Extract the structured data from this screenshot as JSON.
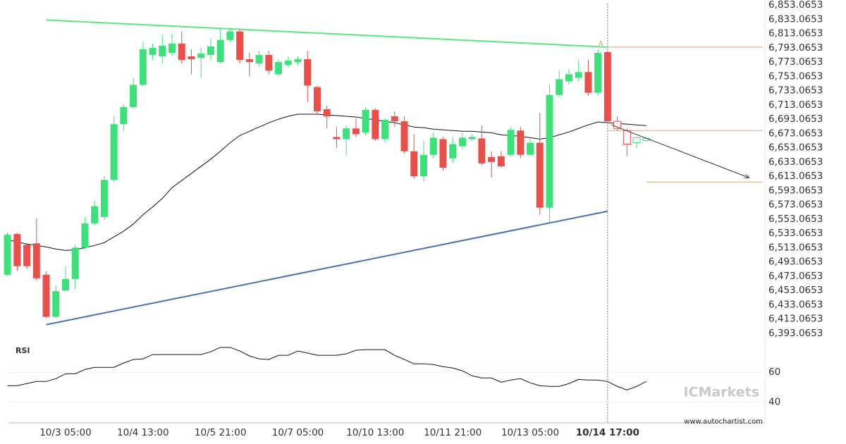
{
  "chart_data": [
    {
      "type": "candlestick",
      "categories": [
        null,
        null,
        null,
        null,
        null,
        null,
        "10/3 05:00",
        null,
        null,
        null,
        null,
        null,
        null,
        null,
        "10/4 13:00",
        null,
        null,
        null,
        null,
        null,
        null,
        null,
        "10/5 21:00",
        null,
        null,
        null,
        null,
        null,
        null,
        null,
        "10/7 05:00",
        null,
        null,
        null,
        null,
        null,
        null,
        null,
        "10/10 13:00",
        null,
        null,
        null,
        null,
        null,
        null,
        null,
        "10/11 21:00",
        null,
        null,
        null,
        null,
        null,
        null,
        null,
        "10/13 05:00",
        null,
        null,
        null,
        null,
        null,
        null,
        null,
        "10/14 17:00",
        null,
        null,
        null,
        null
      ],
      "ohlc": [
        [
          6475,
          6534,
          6473,
          6531
        ],
        [
          6532,
          6534,
          6480,
          6487
        ],
        [
          6517,
          6519,
          6483,
          6487
        ],
        [
          6519,
          6554,
          6467,
          6470
        ],
        [
          6475,
          6480,
          6414,
          6416
        ],
        [
          6416,
          6460,
          6414,
          6452
        ],
        [
          6453,
          6487,
          6451,
          6469
        ],
        [
          6469,
          6517,
          6455,
          6513
        ],
        [
          6513,
          6556,
          6510,
          6547
        ],
        [
          6547,
          6579,
          6544,
          6571
        ],
        [
          6556,
          6613,
          6552,
          6608
        ],
        [
          6608,
          6697,
          6605,
          6686
        ],
        [
          6686,
          6714,
          6676,
          6710
        ],
        [
          6710,
          6751,
          6707,
          6741
        ],
        [
          6741,
          6801,
          6739,
          6791
        ],
        [
          6783,
          6799,
          6776,
          6793
        ],
        [
          6781,
          6811,
          6771,
          6796
        ],
        [
          6786,
          6813,
          6781,
          6799
        ],
        [
          6799,
          6816,
          6771,
          6776
        ],
        [
          6781,
          6791,
          6756,
          6777
        ],
        [
          6779,
          6793,
          6751,
          6785
        ],
        [
          6783,
          6806,
          6776,
          6795
        ],
        [
          6773,
          6821,
          6771,
          6804
        ],
        [
          6804,
          6821,
          6801,
          6816
        ],
        [
          6816,
          6819,
          6771,
          6776
        ],
        [
          6777,
          6786,
          6753,
          6773
        ],
        [
          6771,
          6789,
          6766,
          6783
        ],
        [
          6783,
          6789,
          6756,
          6761
        ],
        [
          6756,
          6777,
          6753,
          6773
        ],
        [
          6769,
          6781,
          6766,
          6775
        ],
        [
          6773,
          6781,
          6769,
          6777
        ],
        [
          6777,
          6789,
          6717,
          6740
        ],
        [
          6738,
          6740,
          6700,
          6704
        ],
        [
          6707,
          6712,
          6680,
          6697
        ],
        [
          6668,
          6682,
          6653,
          6665
        ],
        [
          6665,
          6684,
          6643,
          6680
        ],
        [
          6680,
          6694,
          6668,
          6672
        ],
        [
          6674,
          6710,
          6670,
          6706
        ],
        [
          6706,
          6708,
          6663,
          6665
        ],
        [
          6665,
          6694,
          6660,
          6692
        ],
        [
          6697,
          6704,
          6682,
          6690
        ],
        [
          6690,
          6697,
          6645,
          6648
        ],
        [
          6648,
          6672,
          6610,
          6613
        ],
        [
          6613,
          6663,
          6605,
          6643
        ],
        [
          6643,
          6674,
          6638,
          6667
        ],
        [
          6665,
          6668,
          6621,
          6625
        ],
        [
          6638,
          6668,
          6631,
          6658
        ],
        [
          6655,
          6674,
          6651,
          6667
        ],
        [
          6665,
          6672,
          6663,
          6668
        ],
        [
          6666,
          6684,
          6628,
          6631
        ],
        [
          6640,
          6648,
          6611,
          6633
        ],
        [
          6641,
          6648,
          6625,
          6627
        ],
        [
          6643,
          6682,
          6641,
          6678
        ],
        [
          6677,
          6682,
          6638,
          6643
        ],
        [
          6643,
          6665,
          6641,
          6660
        ],
        [
          6660,
          6702,
          6559,
          6569
        ],
        [
          6569,
          6742,
          6549,
          6727
        ],
        [
          6727,
          6761,
          6724,
          6749
        ],
        [
          6746,
          6763,
          6742,
          6756
        ],
        [
          6751,
          6776,
          6746,
          6759
        ],
        [
          6759,
          6776,
          6726,
          6730
        ],
        [
          6730,
          6791,
          6726,
          6786
        ],
        [
          6787,
          6789,
          6687,
          6690
        ],
        [
          6690,
          6697,
          6677,
          6680
        ],
        [
          6677,
          6680,
          6641,
          6658
        ],
        [
          6660,
          6668,
          6652,
          6667
        ],
        [
          6663,
          6667,
          6661,
          6666
        ]
      ],
      "up_color": "#3fe07b",
      "down_color": "#e8504c",
      "hollow_from": 63,
      "x_highlight": 62,
      "ma": {
        "color": "#111111",
        "values": [
          6524,
          6521,
          6518,
          6516,
          6514,
          6511,
          6509,
          6510,
          6513,
          6516,
          6520,
          6528,
          6536,
          6546,
          6559,
          6570,
          6582,
          6597,
          6607,
          6617,
          6627,
          6637,
          6648,
          6660,
          6670,
          6676,
          6682,
          6688,
          6693,
          6697,
          6700,
          6700,
          6700,
          6699,
          6698,
          6697,
          6696,
          6694,
          6692,
          6690,
          6688,
          6685,
          6682,
          6681,
          6679,
          6678,
          6677,
          6676,
          6676,
          6675,
          6674,
          6671,
          6670,
          6669,
          6667,
          6665,
          6667,
          6671,
          6675,
          6680,
          6685,
          6689,
          6688,
          6687,
          6686,
          6685,
          6684
        ]
      },
      "trendlines": [
        {
          "color": "#5ee57f",
          "from": [
            4,
            6832
          ],
          "to": [
            62,
            6794
          ]
        },
        {
          "color": "#4a6fb5",
          "from": [
            4,
            6405
          ],
          "to": [
            62,
            6564
          ]
        }
      ],
      "levels": [
        {
          "value": 6794,
          "from": 62
        },
        {
          "value": 6677,
          "from": 62
        },
        {
          "value": 6605,
          "from": 66
        }
      ],
      "level_color": "#e9a07a",
      "arrow": {
        "from": [
          62.4,
          6685
        ],
        "to": [
          76.6,
          6611
        ]
      },
      "annotations": [
        {
          "text": "A",
          "x": 61.3,
          "y": 6799
        }
      ],
      "ylim": [
        6381,
        6860
      ],
      "yticks": [
        {
          "value": 6393.0653,
          "label": "6,393.0653"
        },
        {
          "value": 6413.0653,
          "label": "6,413.0653"
        },
        {
          "value": 6433.0653,
          "label": "6,433.0653"
        },
        {
          "value": 6453.0653,
          "label": "6,453.0653"
        },
        {
          "value": 6473.0653,
          "label": "6,473.0653"
        },
        {
          "value": 6493.0653,
          "label": "6,493.0653"
        },
        {
          "value": 6513.0653,
          "label": "6,513.0653"
        },
        {
          "value": 6533.0653,
          "label": "6,533.0653"
        },
        {
          "value": 6553.0653,
          "label": "6,553.0653"
        },
        {
          "value": 6573.0653,
          "label": "6,573.0653"
        },
        {
          "value": 6593.0653,
          "label": "6,593.0653"
        },
        {
          "value": 6613.0653,
          "label": "6,613.0653"
        },
        {
          "value": 6633.0653,
          "label": "6,633.0653"
        },
        {
          "value": 6653.0653,
          "label": "6,653.0653"
        },
        {
          "value": 6673.0653,
          "label": "6,673.0653"
        },
        {
          "value": 6693.0653,
          "label": "6,693.0653"
        },
        {
          "value": 6713.0653,
          "label": "6,713.0653"
        },
        {
          "value": 6733.0653,
          "label": "6,733.0653"
        },
        {
          "value": 6753.0653,
          "label": "6,753.0653"
        },
        {
          "value": 6773.0653,
          "label": "6,773.0653"
        },
        {
          "value": 6793.0653,
          "label": "6,793.0653"
        },
        {
          "value": 6813.0653,
          "label": "6,813.0653"
        },
        {
          "value": 6833.0653,
          "label": "6,833.0653"
        },
        {
          "value": 6853.0653,
          "label": "6,853.0653"
        }
      ]
    },
    {
      "type": "line",
      "title": "RSI",
      "color": "#111111",
      "values": [
        51,
        51,
        52.4,
        53.8,
        53.8,
        55.7,
        59,
        59,
        61.9,
        63.3,
        63.3,
        63.3,
        66.2,
        68.6,
        69,
        71.9,
        71.9,
        71.9,
        71.9,
        71.9,
        71.9,
        73.8,
        76.7,
        76.7,
        74.3,
        71,
        69,
        68.6,
        71.4,
        71.4,
        74.3,
        72.9,
        71.4,
        71.4,
        71.4,
        72.4,
        74.8,
        75.2,
        75.2,
        75.2,
        71.4,
        68.6,
        65.7,
        65.7,
        65.2,
        63.8,
        62.9,
        61,
        57.6,
        56.2,
        56.2,
        53.3,
        54.8,
        55.7,
        52.9,
        51,
        50.5,
        50.5,
        52.4,
        55.2,
        54.8,
        54.8,
        53.8,
        50.5,
        48.1,
        50.5,
        53.8
      ],
      "ylim": [
        26,
        80
      ],
      "yticks": [
        60,
        40
      ],
      "grid": true
    }
  ],
  "watermark": {
    "brand": "ICMarkets",
    "site": "www.autochartist.com"
  }
}
